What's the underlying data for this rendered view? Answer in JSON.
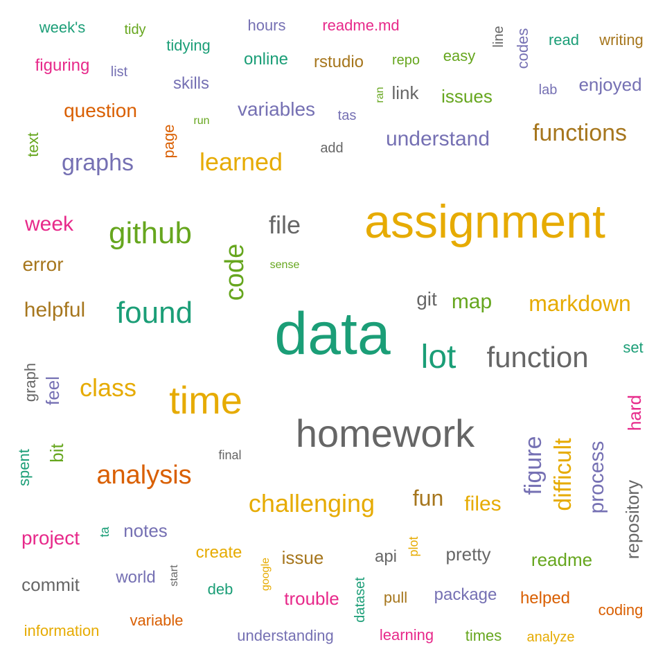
{
  "palette": {
    "teal": "#1b9e77",
    "orange": "#d95f02",
    "purple": "#7570b3",
    "magenta": "#e7298a",
    "green": "#66a61e",
    "gold": "#e6ab02",
    "brown": "#a6761d",
    "gray": "#666666"
  },
  "words": [
    {
      "text": "data",
      "color": "teal",
      "weight": 100
    },
    {
      "text": "assignment",
      "color": "gold",
      "weight": 92
    },
    {
      "text": "homework",
      "color": "gray",
      "weight": 70
    },
    {
      "text": "time",
      "color": "gold",
      "weight": 66
    },
    {
      "text": "code",
      "color": "green",
      "weight": 50
    },
    {
      "text": "lot",
      "color": "teal",
      "weight": 50
    },
    {
      "text": "github",
      "color": "green",
      "weight": 48
    },
    {
      "text": "found",
      "color": "teal",
      "weight": 48
    },
    {
      "text": "function",
      "color": "gray",
      "weight": 44
    },
    {
      "text": "analysis",
      "color": "orange",
      "weight": 40
    },
    {
      "text": "challenging",
      "color": "gold",
      "weight": 38
    },
    {
      "text": "figure",
      "color": "purple",
      "weight": 35
    },
    {
      "text": "difficult",
      "color": "gold",
      "weight": 34
    },
    {
      "text": "file",
      "color": "gray",
      "weight": 34
    },
    {
      "text": "class",
      "color": "gold",
      "weight": 34
    },
    {
      "text": "functions",
      "color": "brown",
      "weight": 33
    },
    {
      "text": "graphs",
      "color": "purple",
      "weight": 33
    },
    {
      "text": "learned",
      "color": "gold",
      "weight": 33
    },
    {
      "text": "markdown",
      "color": "gold",
      "weight": 32
    },
    {
      "text": "process",
      "color": "purple",
      "weight": 31
    },
    {
      "text": "understand",
      "color": "purple",
      "weight": 30
    },
    {
      "text": "helpful",
      "color": "brown",
      "weight": 30
    },
    {
      "text": "fun",
      "color": "brown",
      "weight": 30
    },
    {
      "text": "map",
      "color": "green",
      "weight": 29
    },
    {
      "text": "files",
      "color": "gold",
      "weight": 29
    },
    {
      "text": "week",
      "color": "magenta",
      "weight": 27
    },
    {
      "text": "variables",
      "color": "purple",
      "weight": 27
    },
    {
      "text": "git",
      "color": "gray",
      "weight": 27
    },
    {
      "text": "project",
      "color": "magenta",
      "weight": 27
    },
    {
      "text": "repository",
      "color": "gray",
      "weight": 27
    },
    {
      "text": "error",
      "color": "brown",
      "weight": 26
    },
    {
      "text": "question",
      "color": "orange",
      "weight": 26
    },
    {
      "text": "feel",
      "color": "purple",
      "weight": 26
    },
    {
      "text": "pretty",
      "color": "gray",
      "weight": 26
    },
    {
      "text": "issues",
      "color": "green",
      "weight": 26
    },
    {
      "text": "enjoyed",
      "color": "purple",
      "weight": 26
    },
    {
      "text": "notes",
      "color": "purple",
      "weight": 25
    },
    {
      "text": "bit",
      "color": "green",
      "weight": 25
    },
    {
      "text": "hard",
      "color": "magenta",
      "weight": 25
    },
    {
      "text": "link",
      "color": "gray",
      "weight": 25
    },
    {
      "text": "issue",
      "color": "brown",
      "weight": 25
    },
    {
      "text": "readme",
      "color": "green",
      "weight": 25
    },
    {
      "text": "commit",
      "color": "gray",
      "weight": 25
    },
    {
      "text": "trouble",
      "color": "magenta",
      "weight": 25
    },
    {
      "text": "package",
      "color": "purple",
      "weight": 24
    },
    {
      "text": "helped",
      "color": "orange",
      "weight": 24
    },
    {
      "text": "api",
      "color": "gray",
      "weight": 24
    },
    {
      "text": "create",
      "color": "gold",
      "weight": 24
    },
    {
      "text": "world",
      "color": "purple",
      "weight": 24
    },
    {
      "text": "rstudio",
      "color": "brown",
      "weight": 24
    },
    {
      "text": "online",
      "color": "teal",
      "weight": 24
    },
    {
      "text": "skills",
      "color": "purple",
      "weight": 24
    },
    {
      "text": "figuring",
      "color": "magenta",
      "weight": 24
    },
    {
      "text": "tidying",
      "color": "teal",
      "weight": 22
    },
    {
      "text": "read",
      "color": "teal",
      "weight": 22
    },
    {
      "text": "writing",
      "color": "brown",
      "weight": 22
    },
    {
      "text": "easy",
      "color": "green",
      "weight": 22
    },
    {
      "text": "codes",
      "color": "purple",
      "weight": 22
    },
    {
      "text": "hours",
      "color": "purple",
      "weight": 22
    },
    {
      "text": "readme.md",
      "color": "magenta",
      "weight": 22
    },
    {
      "text": "week's",
      "color": "teal",
      "weight": 22
    },
    {
      "text": "deb",
      "color": "teal",
      "weight": 22
    },
    {
      "text": "pull",
      "color": "brown",
      "weight": 22
    },
    {
      "text": "coding",
      "color": "orange",
      "weight": 22
    },
    {
      "text": "variable",
      "color": "orange",
      "weight": 22
    },
    {
      "text": "understanding",
      "color": "purple",
      "weight": 22
    },
    {
      "text": "learning",
      "color": "magenta",
      "weight": 22
    },
    {
      "text": "times",
      "color": "green",
      "weight": 22
    },
    {
      "text": "information",
      "color": "gold",
      "weight": 22
    },
    {
      "text": "text",
      "color": "green",
      "weight": 22
    },
    {
      "text": "page",
      "color": "orange",
      "weight": 22
    },
    {
      "text": "graph",
      "color": "gray",
      "weight": 22
    },
    {
      "text": "spent",
      "color": "teal",
      "weight": 22
    },
    {
      "text": "set",
      "color": "teal",
      "weight": 22
    },
    {
      "text": "dataset",
      "color": "teal",
      "weight": 20
    },
    {
      "text": "analyze",
      "color": "gold",
      "weight": 20
    },
    {
      "text": "tidy",
      "color": "green",
      "weight": 20
    },
    {
      "text": "repo",
      "color": "green",
      "weight": 20
    },
    {
      "text": "line",
      "color": "gray",
      "weight": 20
    },
    {
      "text": "lab",
      "color": "purple",
      "weight": 20
    },
    {
      "text": "list",
      "color": "purple",
      "weight": 20
    },
    {
      "text": "tas",
      "color": "purple",
      "weight": 20
    },
    {
      "text": "add",
      "color": "gray",
      "weight": 20
    },
    {
      "text": "final",
      "color": "gray",
      "weight": 18
    },
    {
      "text": "google",
      "color": "gold",
      "weight": 16
    },
    {
      "text": "plot",
      "color": "gold",
      "weight": 18
    },
    {
      "text": "ta",
      "color": "teal",
      "weight": 18
    },
    {
      "text": "ran",
      "color": "green",
      "weight": 16
    },
    {
      "text": "run",
      "color": "green",
      "weight": 16
    },
    {
      "text": "sense",
      "color": "green",
      "weight": 16
    },
    {
      "text": "start",
      "color": "gray",
      "weight": 16
    }
  ]
}
